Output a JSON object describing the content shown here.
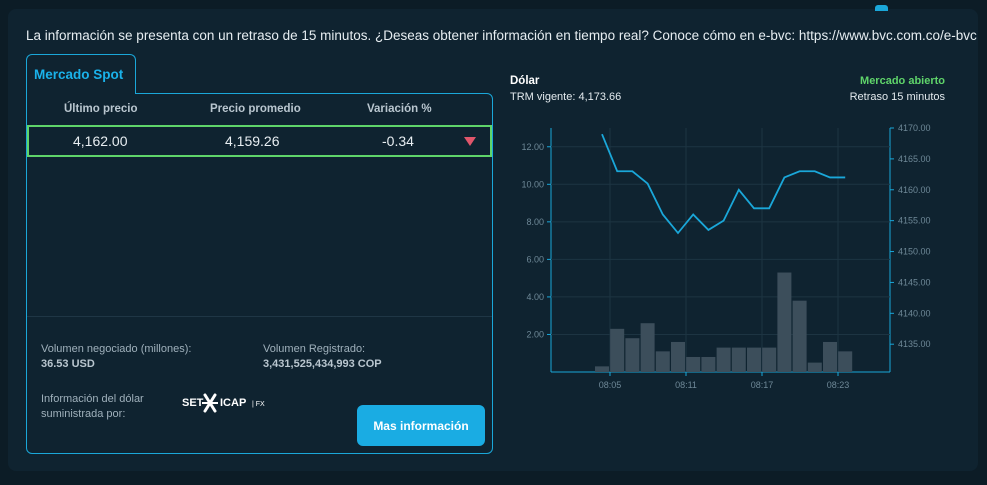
{
  "notice": "La información se presenta con un retraso de 15 minutos. ¿Deseas obtener información en tiempo real? Conoce cómo en e-bvc: https://www.bvc.com.co/e-bvc",
  "tab": {
    "label": "Mercado Spot"
  },
  "table": {
    "headers": [
      "Último precio",
      "Precio promedio",
      "Variación %"
    ],
    "row": {
      "last": "4,162.00",
      "avg": "4,159.26",
      "change": "-0.34",
      "direction": "down"
    }
  },
  "stats": {
    "volume_negotiated_label": "Volumen negociado (millones):",
    "volume_negotiated_value": "36.53 USD",
    "volume_registered_label": "Volumen Registrado:",
    "volume_registered_value": "3,431,525,434,993 COP",
    "provider_label_1": "Información del dólar",
    "provider_label_2": "suministrada por:",
    "provider_logo_text": "SET ICAP | FX"
  },
  "button": {
    "label": "Mas información"
  },
  "chart_header": {
    "title": "Dólar",
    "trm": "TRM vigente: 4,173.66",
    "status": "Mercado abierto",
    "delay": "Retraso 15 minutos"
  },
  "colors": {
    "accent": "#1aa7d9",
    "positive": "#5fd46a",
    "negative": "#e0566b",
    "bars": "#3c4e5b",
    "line": "#1aa7d9"
  },
  "chart_data": {
    "type": "bar+line",
    "x_ticks": [
      "08:05",
      "08:11",
      "08:17",
      "08:23"
    ],
    "left_axis": {
      "ticks": [
        "2.00",
        "4.00",
        "6.00",
        "8.00",
        "10.00",
        "12.00"
      ],
      "ylim": [
        0,
        13
      ]
    },
    "right_axis": {
      "ticks": [
        "4135.00",
        "4140.00",
        "4145.00",
        "4150.00",
        "4155.00",
        "4160.00",
        "4165.00",
        "4170.00"
      ],
      "ylim": [
        4130.5,
        4170
      ]
    },
    "bars": [
      0.3,
      2.3,
      1.8,
      2.6,
      1.1,
      1.6,
      0.8,
      0.8,
      1.3,
      1.3,
      1.3,
      1.3,
      5.3,
      3.8,
      0.5,
      1.6,
      1.1
    ],
    "line": [
      4169,
      4163,
      4163,
      4161,
      4156,
      4153,
      4156,
      4153.5,
      4155,
      4160,
      4157,
      4157,
      4162,
      4163,
      4163,
      4162,
      4162
    ]
  }
}
